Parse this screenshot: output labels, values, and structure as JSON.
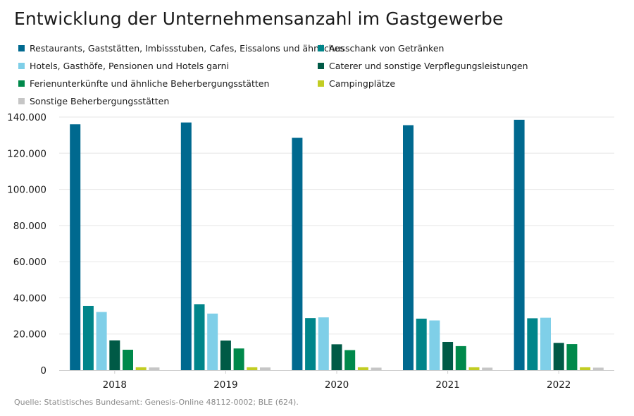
{
  "chart_data": {
    "type": "bar",
    "title": "Entwicklung der Unternehmensanzahl im Gastgewerbe",
    "xlabel": "",
    "ylabel": "",
    "ylim": [
      0,
      140000
    ],
    "yticks": [
      0,
      20000,
      40000,
      60000,
      80000,
      100000,
      120000,
      140000
    ],
    "ytick_labels": [
      "0",
      "20.000",
      "40.000",
      "60.000",
      "80.000",
      "100.000",
      "120.000",
      "140.000"
    ],
    "categories": [
      "2018",
      "2019",
      "2020",
      "2021",
      "2022"
    ],
    "series": [
      {
        "name": "Restaurants, Gaststätten, Imbissstuben, Cafes, Eissalons und ähnliches",
        "color": "#00698f",
        "values": [
          136000,
          137000,
          128500,
          135500,
          138500
        ]
      },
      {
        "name": "Ausschank von Getränken",
        "color": "#00858a",
        "values": [
          35500,
          36500,
          28800,
          28500,
          28700
        ]
      },
      {
        "name": "Hotels, Gasthöfe, Pensionen und Hotels garni",
        "color": "#7fcfe8",
        "values": [
          32200,
          31300,
          29200,
          27500,
          29000
        ]
      },
      {
        "name": "Caterer und sonstige Verpflegungsleistungen",
        "color": "#005a46",
        "values": [
          16500,
          16400,
          14300,
          15600,
          15100
        ]
      },
      {
        "name": "Ferienunterkünfte und ähnliche Beherbergungsstätten",
        "color": "#00894b",
        "values": [
          11300,
          12000,
          11100,
          13300,
          14400
        ]
      },
      {
        "name": "Campingplätze",
        "color": "#c2cd23",
        "values": [
          1600,
          1600,
          1600,
          1600,
          1600
        ]
      },
      {
        "name": "Sonstige Beherbergungsstätten",
        "color": "#c6c6c6",
        "values": [
          1500,
          1500,
          1400,
          1400,
          1400
        ]
      }
    ],
    "legend_position": "top",
    "grid": true
  },
  "source": "Quelle: Statistisches Bundesamt: Genesis-Online 48112-0002; BLE (624)."
}
